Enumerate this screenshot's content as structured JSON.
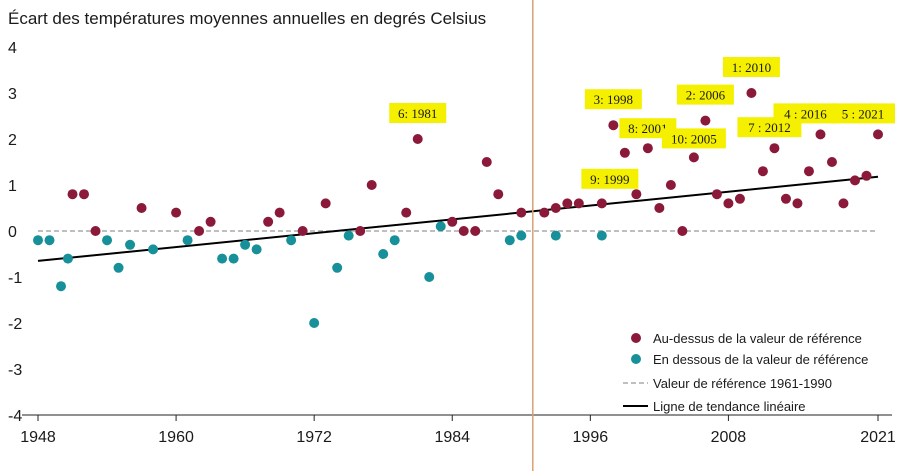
{
  "chart_data": {
    "type": "scatter",
    "title": "Écart des températures moyennes annuelles en degrés Celsius",
    "xlabel": "",
    "ylabel": "",
    "xlim": [
      1948,
      2021
    ],
    "ylim": [
      -4,
      4
    ],
    "x_ticks": [
      "1948",
      "1960",
      "1972",
      "1984",
      "1996",
      "2008",
      "2021"
    ],
    "y_ticks": [
      "4",
      "3",
      "2",
      "1",
      "0",
      "-1",
      "-2",
      "-3",
      "-4"
    ],
    "marker_line_year": 1991,
    "series": [
      {
        "name": "Au-dessus de la valeur de référence",
        "color": "#8b1a3a",
        "points": [
          {
            "x": 1951,
            "y": 0.8
          },
          {
            "x": 1952,
            "y": 0.8
          },
          {
            "x": 1953,
            "y": 0.0
          },
          {
            "x": 1957,
            "y": 0.5
          },
          {
            "x": 1960,
            "y": 0.4
          },
          {
            "x": 1962,
            "y": 0.0
          },
          {
            "x": 1963,
            "y": 0.2
          },
          {
            "x": 1968,
            "y": 0.2
          },
          {
            "x": 1969,
            "y": 0.4
          },
          {
            "x": 1971,
            "y": 0.0
          },
          {
            "x": 1973,
            "y": 0.6
          },
          {
            "x": 1976,
            "y": 0.0
          },
          {
            "x": 1977,
            "y": 1.0
          },
          {
            "x": 1980,
            "y": 0.4
          },
          {
            "x": 1981,
            "y": 2.0
          },
          {
            "x": 1984,
            "y": 0.2
          },
          {
            "x": 1985,
            "y": 0.0
          },
          {
            "x": 1986,
            "y": 0.0
          },
          {
            "x": 1987,
            "y": 1.5
          },
          {
            "x": 1988,
            "y": 0.8
          },
          {
            "x": 1990,
            "y": 0.4
          },
          {
            "x": 1992,
            "y": 0.4
          },
          {
            "x": 1993,
            "y": 0.5
          },
          {
            "x": 1994,
            "y": 0.6
          },
          {
            "x": 1995,
            "y": 0.6
          },
          {
            "x": 1997,
            "y": 0.6
          },
          {
            "x": 1998,
            "y": 2.3
          },
          {
            "x": 1999,
            "y": 1.7
          },
          {
            "x": 2000,
            "y": 0.8
          },
          {
            "x": 2001,
            "y": 1.8
          },
          {
            "x": 2002,
            "y": 0.5
          },
          {
            "x": 2003,
            "y": 1.0
          },
          {
            "x": 2004,
            "y": 0.0
          },
          {
            "x": 2005,
            "y": 1.6
          },
          {
            "x": 2006,
            "y": 2.4
          },
          {
            "x": 2007,
            "y": 0.8
          },
          {
            "x": 2008,
            "y": 0.6
          },
          {
            "x": 2009,
            "y": 0.7
          },
          {
            "x": 2010,
            "y": 3.0
          },
          {
            "x": 2011,
            "y": 1.3
          },
          {
            "x": 2012,
            "y": 1.8
          },
          {
            "x": 2013,
            "y": 0.7
          },
          {
            "x": 2014,
            "y": 0.6
          },
          {
            "x": 2015,
            "y": 1.3
          },
          {
            "x": 2016,
            "y": 2.1
          },
          {
            "x": 2017,
            "y": 1.5
          },
          {
            "x": 2018,
            "y": 0.6
          },
          {
            "x": 2019,
            "y": 1.1
          },
          {
            "x": 2020,
            "y": 1.2
          },
          {
            "x": 2021,
            "y": 2.1
          }
        ]
      },
      {
        "name": "En dessous de la valeur de référence",
        "color": "#17909a",
        "points": [
          {
            "x": 1948,
            "y": -0.2
          },
          {
            "x": 1949,
            "y": -0.2
          },
          {
            "x": 1950,
            "y": -1.2
          },
          {
            "x": 1950.6,
            "y": -0.6
          },
          {
            "x": 1954,
            "y": -0.2
          },
          {
            "x": 1955,
            "y": -0.8
          },
          {
            "x": 1956,
            "y": -0.3
          },
          {
            "x": 1958,
            "y": -0.4
          },
          {
            "x": 1961,
            "y": -0.2
          },
          {
            "x": 1964,
            "y": -0.6
          },
          {
            "x": 1965,
            "y": -0.6
          },
          {
            "x": 1966,
            "y": -0.3
          },
          {
            "x": 1967,
            "y": -0.4
          },
          {
            "x": 1970,
            "y": -0.2
          },
          {
            "x": 1972,
            "y": -2.0
          },
          {
            "x": 1974,
            "y": -0.8
          },
          {
            "x": 1975,
            "y": -0.1
          },
          {
            "x": 1978,
            "y": -0.5
          },
          {
            "x": 1979,
            "y": -0.2
          },
          {
            "x": 1982,
            "y": -1.0
          },
          {
            "x": 1983,
            "y": 0.1
          },
          {
            "x": 1989,
            "y": -0.2
          },
          {
            "x": 1990,
            "y": -0.1
          },
          {
            "x": 1993,
            "y": -0.1
          },
          {
            "x": 1997,
            "y": -0.1
          }
        ]
      }
    ],
    "reference_line": {
      "name": "Valeur de référence 1961-1990",
      "y": 0,
      "color": "#aaaaaa"
    },
    "trend_line": {
      "name": "Ligne de tendance linéaire",
      "x": [
        1948,
        2021
      ],
      "y": [
        -0.65,
        1.18
      ],
      "color": "#000000"
    },
    "annotations": [
      {
        "label": "6: 1981",
        "x": 1981,
        "y": 2.0
      },
      {
        "label": "3: 1998",
        "x": 1998,
        "y": 2.3
      },
      {
        "label": "9: 1999",
        "x": 1999,
        "y": 1.7
      },
      {
        "label": "8: 2001",
        "x": 2001,
        "y": 1.8
      },
      {
        "label": "10: 2005",
        "x": 2005,
        "y": 1.6
      },
      {
        "label": "2: 2006",
        "x": 2006,
        "y": 2.4
      },
      {
        "label": "1: 2010",
        "x": 2010,
        "y": 3.0
      },
      {
        "label": "7 : 2012",
        "x": 2012,
        "y": 1.8
      },
      {
        "label": "4 : 2016",
        "x": 2016,
        "y": 2.1
      },
      {
        "label": "5 : 2021",
        "x": 2021,
        "y": 2.1
      }
    ],
    "legend_position": "bottom-right",
    "annotation_color": "#f5f000",
    "vline_color": "#d9a070",
    "axis_color": "#222222"
  }
}
